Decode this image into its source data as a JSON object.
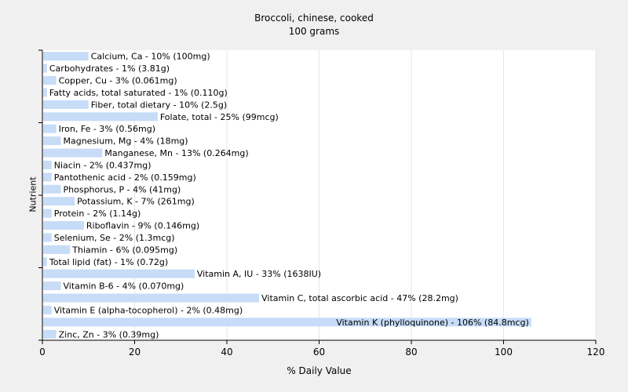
{
  "chart_data": {
    "type": "bar",
    "orientation": "horizontal",
    "title": "Broccoli, chinese, cooked",
    "subtitle": "100 grams",
    "xlabel": "% Daily Value",
    "ylabel": "Nutrient",
    "xlim": [
      0,
      120
    ],
    "xticks": [
      0,
      20,
      40,
      60,
      80,
      100,
      120
    ],
    "grid": true,
    "bar_color": "#c6dcf7",
    "categories": [
      "Calcium, Ca - 10% (100mg)",
      "Carbohydrates - 1% (3.81g)",
      "Copper, Cu - 3% (0.061mg)",
      "Fatty acids, total saturated - 1% (0.110g)",
      "Fiber, total dietary - 10% (2.5g)",
      "Folate, total - 25% (99mcg)",
      "Iron, Fe - 3% (0.56mg)",
      "Magnesium, Mg - 4% (18mg)",
      "Manganese, Mn - 13% (0.264mg)",
      "Niacin - 2% (0.437mg)",
      "Pantothenic acid - 2% (0.159mg)",
      "Phosphorus, P - 4% (41mg)",
      "Potassium, K - 7% (261mg)",
      "Protein - 2% (1.14g)",
      "Riboflavin - 9% (0.146mg)",
      "Selenium, Se - 2% (1.3mcg)",
      "Thiamin - 6% (0.095mg)",
      "Total lipid (fat) - 1% (0.72g)",
      "Vitamin A, IU - 33% (1638IU)",
      "Vitamin B-6 - 4% (0.070mg)",
      "Vitamin C, total ascorbic acid - 47% (28.2mg)",
      "Vitamin E (alpha-tocopherol) - 2% (0.48mg)",
      "Vitamin K (phylloquinone) - 106% (84.8mcg)",
      "Zinc, Zn - 3% (0.39mg)"
    ],
    "values": [
      10,
      1,
      3,
      1,
      10,
      25,
      3,
      4,
      13,
      2,
      2,
      4,
      7,
      2,
      9,
      2,
      6,
      1,
      33,
      4,
      47,
      2,
      106,
      3
    ]
  }
}
